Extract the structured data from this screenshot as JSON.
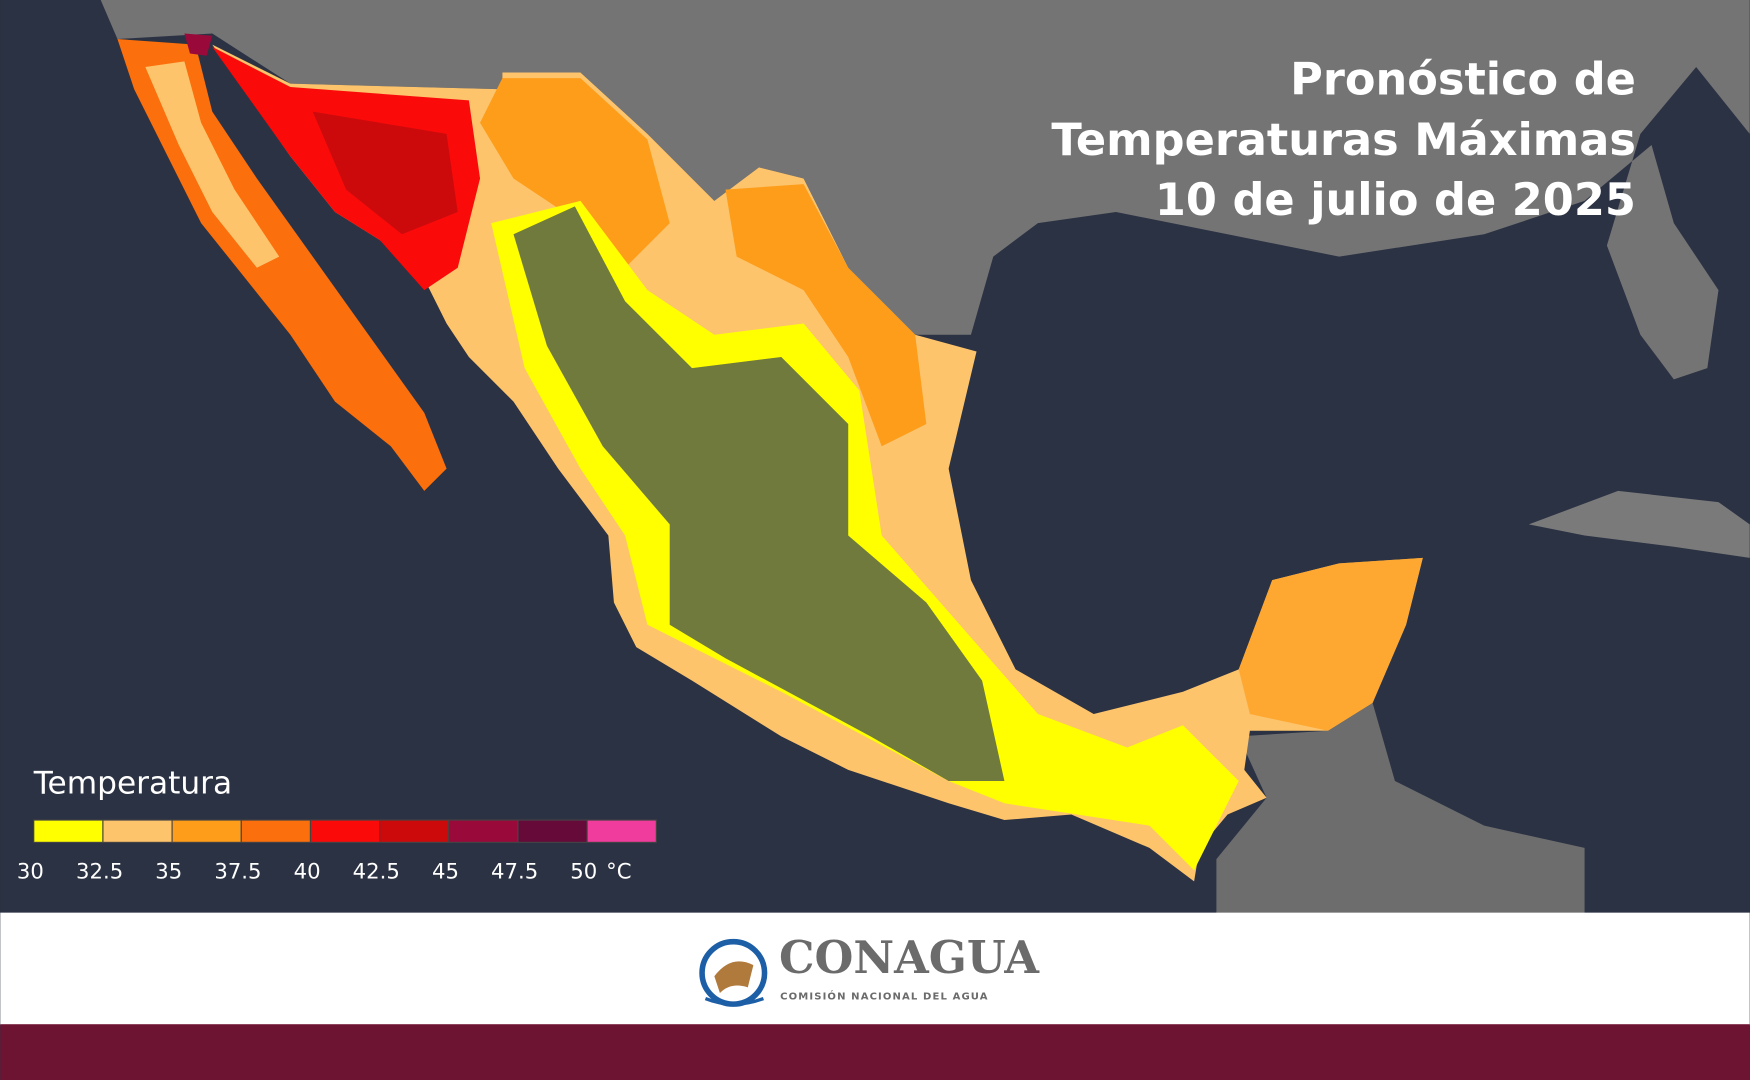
{
  "title": [
    "Pronóstico de",
    "Temperaturas Máximas",
    "10 de julio de 2025"
  ],
  "legend": {
    "title": "Temperatura",
    "ticks": [
      30,
      32.5,
      35,
      37.5,
      40,
      42.5,
      45,
      47.5,
      50
    ],
    "unit": "°C",
    "colors": [
      "#ffff00",
      "#fdc46c",
      "#fd9d1a",
      "#fb6f0c",
      "#fb0a0a",
      "#cc0a0c",
      "#990a3a",
      "#660a3a",
      "#f03c9c"
    ]
  },
  "logo": {
    "name": "CONAGUA",
    "subtitle": "COMISIÓN NACIONAL DEL AGUA"
  }
}
